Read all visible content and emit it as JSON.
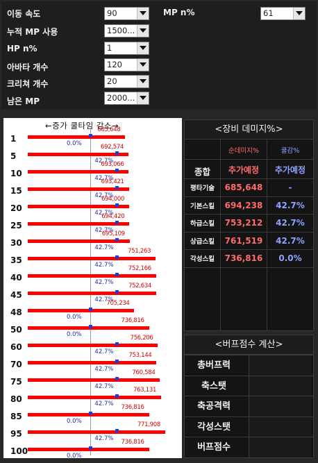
{
  "settings": {
    "move_speed": {
      "label": "이동 속도",
      "value": "90"
    },
    "mp_pct": {
      "label": "MP n%",
      "value": "61"
    },
    "cumulative_mp": {
      "label": "누적 MP 사용",
      "value": "1500..."
    },
    "hp_pct": {
      "label": "HP n%",
      "value": "1"
    },
    "avatar_count": {
      "label": "아바타 개수",
      "value": "120"
    },
    "creature_count": {
      "label": "크리쳐 개수",
      "value": "20"
    },
    "remaining_mp": {
      "label": "남은 MP",
      "value": "2000..."
    }
  },
  "graph": {
    "header": "←증가  쿨타임  감소→",
    "rows": [
      {
        "level": "1",
        "damage": "685,648",
        "cooldown_reduction_pct": "0.0%",
        "cooldown_reduction": 0.0
      },
      {
        "level": "5",
        "damage": "692,574",
        "cooldown_reduction_pct": "42.7%",
        "cooldown_reduction": 42.7
      },
      {
        "level": "10",
        "damage": "693,066",
        "cooldown_reduction_pct": "42.7%",
        "cooldown_reduction": 42.7
      },
      {
        "level": "15",
        "damage": "693,421",
        "cooldown_reduction_pct": "42.7%",
        "cooldown_reduction": 42.7
      },
      {
        "level": "20",
        "damage": "694,000",
        "cooldown_reduction_pct": "42.7%",
        "cooldown_reduction": 42.7
      },
      {
        "level": "25",
        "damage": "694,420",
        "cooldown_reduction_pct": "42.7%",
        "cooldown_reduction": 42.7
      },
      {
        "level": "30",
        "damage": "695,109",
        "cooldown_reduction_pct": "42.7%",
        "cooldown_reduction": 42.7
      },
      {
        "level": "35",
        "damage": "751,263",
        "cooldown_reduction_pct": "42.7%",
        "cooldown_reduction": 42.7
      },
      {
        "level": "40",
        "damage": "752,166",
        "cooldown_reduction_pct": "42.7%",
        "cooldown_reduction": 42.7
      },
      {
        "level": "45",
        "damage": "752,634",
        "cooldown_reduction_pct": "42.7%",
        "cooldown_reduction": 42.7
      },
      {
        "level": "48",
        "damage": "705,234",
        "cooldown_reduction_pct": "0.0%",
        "cooldown_reduction": 0.0
      },
      {
        "level": "50",
        "damage": "736,816",
        "cooldown_reduction_pct": "0.0%",
        "cooldown_reduction": 0.0
      },
      {
        "level": "60",
        "damage": "756,206",
        "cooldown_reduction_pct": "42.7%",
        "cooldown_reduction": 42.7
      },
      {
        "level": "70",
        "damage": "753,144",
        "cooldown_reduction_pct": "42.7%",
        "cooldown_reduction": 42.7
      },
      {
        "level": "75",
        "damage": "760,584",
        "cooldown_reduction_pct": "42.7%",
        "cooldown_reduction": 42.7
      },
      {
        "level": "80",
        "damage": "763,131",
        "cooldown_reduction_pct": "42.7%",
        "cooldown_reduction": 42.7
      },
      {
        "level": "85",
        "damage": "736,816",
        "cooldown_reduction_pct": "0.0%",
        "cooldown_reduction": 0.0
      },
      {
        "level": "95",
        "damage": "771,908",
        "cooldown_reduction_pct": "42.7%",
        "cooldown_reduction": 42.7
      },
      {
        "level": "100",
        "damage": "736,816",
        "cooldown_reduction_pct": "0.0%",
        "cooldown_reduction": 0.0
      }
    ]
  },
  "equip_damage": {
    "title": "<장비 데미지%>",
    "col_headers": [
      "순데미지%",
      "쿨감%"
    ],
    "summary": {
      "label": "종합",
      "damage": "추가예정",
      "cooldown": "추가예정"
    },
    "rows": [
      {
        "label": "평타기술",
        "damage": "685,648",
        "cooldown": "-"
      },
      {
        "label": "기본스킬",
        "damage": "694,238",
        "cooldown": "42.7%"
      },
      {
        "label": "하급스킬",
        "damage": "753,212",
        "cooldown": "42.7%"
      },
      {
        "label": "상급스킬",
        "damage": "761,519",
        "cooldown": "42.7%"
      },
      {
        "label": "각성스킬",
        "damage": "736,816",
        "cooldown": "0.0%"
      }
    ]
  },
  "buff_score": {
    "title": "<버프점수 계산>",
    "rows": [
      {
        "label": "총버프력"
      },
      {
        "label": "축스탯"
      },
      {
        "label": "축공격력"
      },
      {
        "label": "각성스탯"
      },
      {
        "label": "버프점수"
      }
    ]
  },
  "colors": {
    "bar": "#ff0000",
    "marker": "#1a3fd6",
    "damage_text": "#ff6b6b",
    "cooldown_text": "#8ea2ff"
  }
}
